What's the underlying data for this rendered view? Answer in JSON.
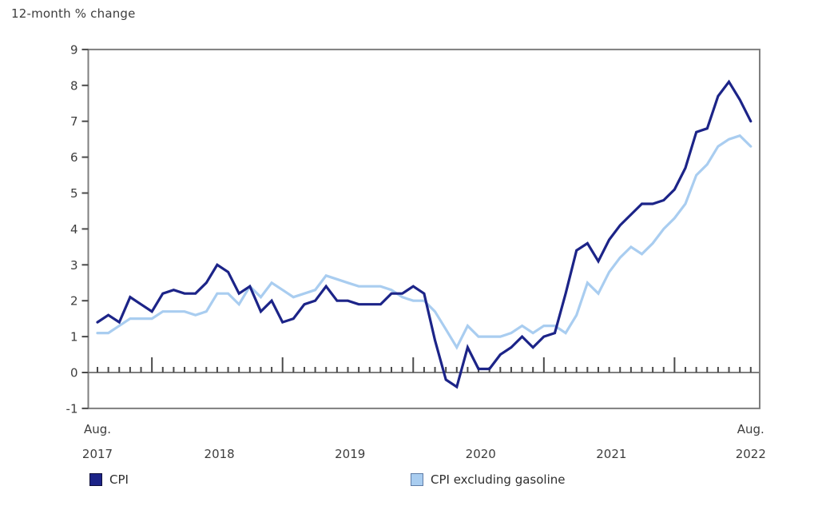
{
  "chart_data": {
    "type": "line",
    "title": "12-month % change",
    "xlabel": "",
    "ylabel": "12-month % change",
    "ylim": [
      -1,
      9
    ],
    "ytick_labels": [
      "9",
      "8",
      "7",
      "6",
      "5",
      "4",
      "3",
      "2",
      "1",
      "0",
      "-1"
    ],
    "x_edge_labels": {
      "left": [
        "Aug.",
        "2017"
      ],
      "right": [
        "Aug.",
        "2022"
      ]
    },
    "x_year_labels": [
      "2018",
      "2019",
      "2020",
      "2021"
    ],
    "x_range": "Aug 2017 to Aug 2022, monthly",
    "grid": false,
    "legend_position": "bottom",
    "axis_color": "#7f7f7f",
    "tick_color": "#4a4a4a",
    "text_color": "#3d3d3d",
    "series": [
      {
        "name": "CPI",
        "color": "#1c2488",
        "swatch_border": "#10103a",
        "values": [
          1.4,
          1.6,
          1.4,
          2.1,
          1.9,
          1.7,
          2.2,
          2.3,
          2.2,
          2.2,
          2.5,
          3.0,
          2.8,
          2.2,
          2.4,
          1.7,
          2.0,
          1.4,
          1.5,
          1.9,
          2.0,
          2.4,
          2.0,
          2.0,
          1.9,
          1.9,
          1.9,
          2.2,
          2.2,
          2.4,
          2.2,
          0.9,
          -0.2,
          -0.4,
          0.7,
          0.1,
          0.1,
          0.5,
          0.7,
          1.0,
          0.7,
          1.0,
          1.1,
          2.2,
          3.4,
          3.6,
          3.1,
          3.7,
          4.1,
          4.4,
          4.7,
          4.7,
          4.8,
          5.1,
          5.7,
          6.7,
          6.8,
          7.7,
          8.1,
          7.6,
          7.0
        ]
      },
      {
        "name": "CPI excluding gasoline",
        "color": "#a9cdf0",
        "swatch_border": "#5f7ca6",
        "values": [
          1.1,
          1.1,
          1.3,
          1.5,
          1.5,
          1.5,
          1.7,
          1.7,
          1.7,
          1.6,
          1.7,
          2.2,
          2.2,
          1.9,
          2.4,
          2.1,
          2.5,
          2.3,
          2.1,
          2.2,
          2.3,
          2.7,
          2.6,
          2.5,
          2.4,
          2.4,
          2.4,
          2.3,
          2.1,
          2.0,
          2.0,
          1.7,
          1.2,
          0.7,
          1.3,
          1.0,
          1.0,
          1.0,
          1.1,
          1.3,
          1.1,
          1.3,
          1.3,
          1.1,
          1.6,
          2.5,
          2.2,
          2.8,
          3.2,
          3.5,
          3.3,
          3.6,
          4.0,
          4.3,
          4.7,
          5.5,
          5.8,
          6.3,
          6.5,
          6.6,
          6.3
        ]
      }
    ]
  }
}
